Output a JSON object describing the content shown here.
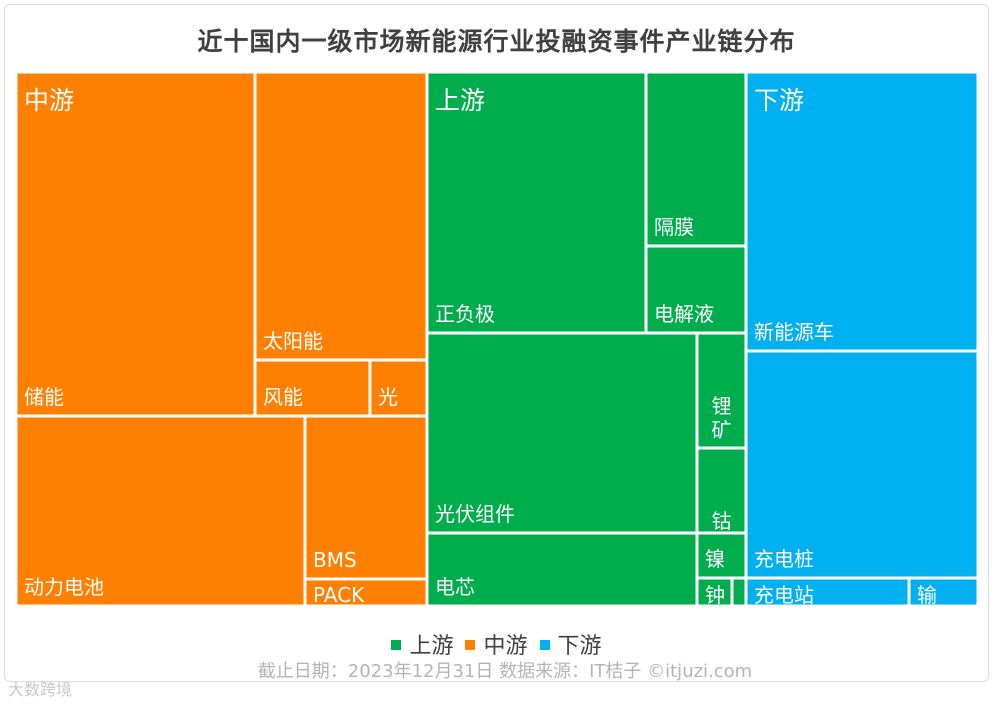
{
  "chart_data": {
    "type": "treemap",
    "title": "近十国内一级市场新能源行业投融资事件产业链分布",
    "groups": [
      {
        "name": "中游",
        "color": "#ff7f00",
        "items": [
          {
            "name": "储能",
            "value": 80.5
          },
          {
            "name": "太阳能",
            "value": 34.9
          },
          {
            "name": "风能",
            "value": 8.5
          },
          {
            "name": "光",
            "value": 3.1
          },
          {
            "name": "动力电池",
            "value": 49.4
          },
          {
            "name": "BMS",
            "value": 16.0
          },
          {
            "name": "PACK",
            "value": 3.2
          }
        ]
      },
      {
        "name": "上游",
        "color": "#00ad4d",
        "items": [
          {
            "name": "正负极",
            "value": 55.6
          },
          {
            "name": "隔膜",
            "value": 15.8
          },
          {
            "name": "电解液",
            "value": 8.0
          },
          {
            "name": "光伏组件",
            "value": 43.8
          },
          {
            "name": "锂矿",
            "value": 5.0
          },
          {
            "name": "钴矿",
            "value": 3.4
          },
          {
            "name": "电芯",
            "value": 13.4
          },
          {
            "name": "镍",
            "value": 1.4
          },
          {
            "name": "钟",
            "value": 0.8
          },
          {
            "name": "",
            "value": 0.4
          }
        ]
      },
      {
        "name": "下游",
        "color": "#00b0f0",
        "items": [
          {
            "name": "新能源车",
            "value": 64.6
          },
          {
            "name": "充电桩",
            "value": 53.7
          },
          {
            "name": "充电站",
            "value": 4.7
          },
          {
            "name": "输",
            "value": 1.9
          }
        ]
      }
    ],
    "legend": [
      "上游",
      "中游",
      "下游"
    ],
    "legend_placement": "bottom"
  },
  "source_note": "截止日期：2023年12月31日    数据来源：IT桔子 ©itjuzi.com",
  "watermark": "大数跨境"
}
